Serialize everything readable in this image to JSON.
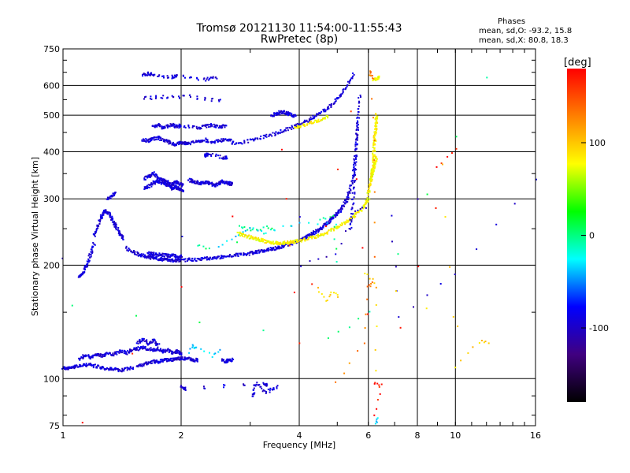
{
  "chart_data": {
    "type": "scatter",
    "title_line1": "Tromsø 20121130 11:54:00-11:55:43",
    "title_line2": "RwPretec (8p)",
    "xlabel": "Frequency [MHz]",
    "ylabel": "Stationary phase Virtual Height [km]",
    "x_scale": "log",
    "y_scale": "log",
    "xlim": [
      1,
      16
    ],
    "ylim": [
      75,
      750
    ],
    "x_ticks": [
      1,
      2,
      4,
      6,
      8,
      10,
      16
    ],
    "x_tick_labels": [
      "1",
      "2",
      "4",
      "6",
      "8",
      "10",
      "16"
    ],
    "y_ticks": [
      75,
      100,
      200,
      300,
      400,
      500,
      600,
      750
    ],
    "y_tick_labels": [
      "75",
      "100",
      "200",
      "300",
      "400",
      "500",
      "600",
      "750"
    ],
    "grid": true,
    "stats": {
      "header": "Phases",
      "line_o": "mean, sd,O: -93.2, 15.8",
      "line_x": "mean, sd,X:  80.8, 18.3"
    },
    "colorbar": {
      "unit_label": "[deg]",
      "range": [
        -180,
        180
      ],
      "ticks": [
        100,
        0,
        -100
      ],
      "tick_labels": [
        "100",
        "0",
        "-100"
      ],
      "colors": [
        "#ff0000",
        "#ff8000",
        "#ffff00",
        "#00ff00",
        "#00ffff",
        "#0000ff",
        "#400080",
        "#000000"
      ]
    },
    "series": [
      {
        "key": "o_mode",
        "phase": -93,
        "segments": [
          {
            "x": [
              1.0,
              1.02,
              1.05,
              1.08,
              1.12,
              1.16,
              1.2,
              1.25,
              1.3,
              1.35,
              1.4,
              1.45,
              1.5
            ],
            "y": [
              107,
              106,
              107,
              108,
              108,
              109,
              108,
              107,
              106,
              106,
              105,
              106,
              107
            ]
          },
          {
            "x": [
              1.55,
              1.6,
              1.65,
              1.7,
              1.75,
              1.8,
              1.85,
              1.9,
              1.95,
              2.0,
              2.05,
              2.1,
              2.15,
              2.2
            ],
            "y": [
              108,
              109,
              110,
              111,
              111,
              112,
              112,
              112,
              113,
              113,
              113,
              113,
              112,
              112
            ]
          },
          {
            "x": [
              1.1,
              1.14,
              1.18,
              1.22,
              1.26,
              1.3,
              1.35,
              1.4,
              1.45,
              1.5,
              1.55,
              1.6,
              1.65,
              1.7,
              1.75,
              1.8,
              1.85,
              1.9,
              1.95,
              2.0
            ],
            "y": [
              113,
              115,
              114,
              116,
              115,
              117,
              116,
              118,
              117,
              119,
              120,
              121,
              120,
              119,
              120,
              118,
              119,
              117,
              118,
              116
            ]
          },
          {
            "x": [
              1.55,
              1.6,
              1.65,
              1.7,
              1.75
            ],
            "y": [
              125,
              127,
              124,
              126,
              123
            ]
          },
          {
            "x": [
              2.55,
              2.6,
              2.65,
              2.7
            ],
            "y": [
              112,
              111,
              112,
              112
            ]
          },
          {
            "x": [
              2.0,
              2.05,
              3.25,
              3.3
            ],
            "y": [
              95,
              94,
              97,
              96
            ]
          },
          {
            "x": [
              1.1,
              1.12,
              1.14,
              1.16,
              1.18,
              1.2
            ],
            "y": [
              185,
              190,
              196,
              205,
              215,
              228
            ]
          },
          {
            "x": [
              1.2,
              1.22,
              1.24,
              1.26,
              1.28,
              1.3,
              1.32,
              1.34,
              1.36,
              1.38,
              1.4,
              1.42
            ],
            "y": [
              240,
              250,
              262,
              272,
              280,
              276,
              270,
              262,
              255,
              248,
              242,
              236
            ]
          },
          {
            "x": [
              1.3,
              1.33,
              1.36
            ],
            "y": [
              300,
              306,
              310
            ]
          },
          {
            "x": [
              1.45,
              1.5,
              1.55,
              1.6,
              1.65,
              1.7,
              1.75,
              1.8,
              1.85,
              1.9,
              1.95,
              2.0,
              2.1,
              2.2,
              2.3,
              2.4,
              2.5,
              2.6,
              2.7,
              2.8,
              2.9,
              3.0,
              3.1,
              3.2,
              3.3,
              3.4,
              3.5,
              3.6,
              3.7,
              3.8,
              3.9,
              4.0,
              4.1,
              4.2,
              4.3,
              4.4,
              4.5,
              4.6,
              4.7,
              4.8,
              4.9,
              5.0,
              5.1,
              5.2,
              5.3,
              5.4,
              5.5,
              5.55,
              5.6,
              5.65,
              5.7
            ],
            "y": [
              222,
              218,
              214,
              212,
              210,
              209,
              208,
              207,
              207,
              206,
              206,
              206,
              207,
              207,
              208,
              209,
              210,
              211,
              212,
              213,
              214,
              215,
              217,
              218,
              219,
              221,
              222,
              224,
              226,
              228,
              230,
              232,
              235,
              238,
              241,
              245,
              249,
              253,
              258,
              263,
              268,
              274,
              281,
              290,
              300,
              318,
              345,
              380,
              430,
              490,
              560
            ]
          },
          {
            "x": [
              1.65,
              1.7,
              1.75,
              1.8,
              1.85,
              1.9,
              1.95,
              2.0
            ],
            "y": [
              215,
              214,
              213,
              213,
              212,
              212,
              211,
              211
            ]
          },
          {
            "x": [
              1.62,
              1.66,
              1.7,
              1.74,
              1.78,
              1.82,
              1.86,
              1.9,
              1.94,
              1.98,
              2.02
            ],
            "y": [
              320,
              325,
              330,
              335,
              332,
              328,
              325,
              320,
              322,
              318,
              316
            ]
          },
          {
            "x": [
              1.62,
              1.66,
              1.7,
              1.74,
              1.78,
              1.82,
              1.86,
              1.9,
              1.94,
              1.98,
              2.02
            ],
            "y": [
              340,
              345,
              350,
              342,
              338,
              335,
              330,
              328,
              333,
              330,
              326
            ]
          },
          {
            "x": [
              2.1,
              2.15,
              2.2,
              2.25,
              2.3,
              2.35,
              2.4,
              2.45,
              2.5,
              2.55,
              2.6,
              2.65,
              2.7
            ],
            "y": [
              336,
              334,
              332,
              330,
              332,
              330,
              328,
              326,
              330,
              334,
              332,
              330,
              328
            ]
          },
          {
            "x": [
              1.6,
              1.65,
              1.7,
              1.75,
              1.8,
              1.85,
              1.9,
              1.95,
              2.0,
              2.05,
              2.1,
              2.2,
              2.3,
              2.4,
              2.5,
              2.6,
              2.7
            ],
            "y": [
              430,
              428,
              432,
              436,
              428,
              425,
              420,
              418,
              424,
              422,
              420,
              426,
              430,
              424,
              428,
              432,
              426
            ]
          },
          {
            "x": [
              1.7,
              1.75,
              1.8,
              1.85,
              1.9,
              1.95,
              2.0,
              2.2,
              2.3,
              2.4,
              2.5,
              2.6
            ],
            "y": [
              465,
              470,
              462,
              468,
              472,
              466,
              470,
              462,
              468,
              470,
              465,
              468
            ]
          },
          {
            "x": [
              2.7,
              2.9,
              3.1,
              3.3,
              3.5,
              3.7,
              3.9,
              4.1,
              4.3,
              4.5,
              4.7,
              4.9,
              5.1,
              5.3,
              5.5
            ],
            "y": [
              420,
              425,
              432,
              440,
              448,
              458,
              468,
              478,
              490,
              505,
              520,
              540,
              565,
              600,
              640
            ]
          },
          {
            "x": [
              3.4,
              3.5,
              3.6,
              3.7,
              3.8,
              3.9
            ],
            "y": [
              500,
              505,
              510,
              508,
              502,
              498
            ]
          },
          {
            "x": [
              1.6,
              1.65,
              1.7,
              1.9,
              1.95,
              2.3,
              2.45
            ],
            "y": [
              640,
              645,
              638,
              632,
              636,
              622,
              628
            ]
          },
          {
            "x": [
              1.62,
              1.85,
              2.1,
              2.5
            ],
            "y": [
              555,
              560,
              560,
              545
            ]
          },
          {
            "x": [
              5.4,
              5.45,
              5.5,
              5.55,
              5.6,
              5.62
            ],
            "y": [
              250,
              275,
              310,
              360,
              420,
              480
            ]
          },
          {
            "x": [
              2.3,
              2.35,
              2.55,
              2.62
            ],
            "y": [
              390,
              395,
              385,
              388
            ]
          },
          {
            "x": [
              3.05,
              3.1,
              3.3,
              3.5
            ],
            "y": [
              90,
              97,
              92,
              95
            ]
          }
        ]
      },
      {
        "key": "x_mode",
        "phase": 81,
        "segments": [
          {
            "x": [
              2.8,
              2.9,
              3.0,
              3.1,
              3.2,
              3.3,
              3.4,
              3.5,
              3.6,
              3.7,
              3.8,
              3.9,
              4.0,
              4.2,
              4.4,
              4.6,
              4.8,
              5.0,
              5.2,
              5.4,
              5.6,
              5.8,
              5.9,
              6.0
            ],
            "y": [
              243,
              240,
              237,
              235,
              233,
              231,
              230,
              229,
              229,
              229,
              230,
              231,
              232,
              235,
              238,
              242,
              247,
              252,
              258,
              265,
              273,
              283,
              290,
              300
            ]
          },
          {
            "x": [
              6.0,
              6.05,
              6.1,
              6.15,
              6.18,
              6.2,
              6.22,
              6.24,
              6.26,
              6.28,
              6.3
            ],
            "y": [
              310,
              325,
              340,
              360,
              380,
              400,
              420,
              440,
              460,
              480,
              500
            ]
          },
          {
            "x": [
              6.1,
              6.15,
              6.2,
              6.25,
              6.3
            ],
            "y": [
              340,
              350,
              365,
              375,
              385
            ]
          },
          {
            "x": [
              3.9,
              4.1,
              4.3,
              4.5,
              4.7
            ],
            "y": [
              465,
              470,
              478,
              485,
              495
            ]
          },
          {
            "x": [
              6.2,
              6.3,
              6.4
            ],
            "y": [
              620,
              625,
              630
            ]
          }
        ]
      },
      {
        "key": "scattered",
        "phase": 0,
        "segments": [
          {
            "x": [
              2.8,
              2.95,
              3.1,
              3.3,
              3.45
            ],
            "y": [
              255,
              250,
              246,
              252,
              248
            ]
          },
          {
            "x": [
              2.2,
              2.35,
              4.5,
              4.9,
              5.0
            ],
            "y": [
              225,
              220,
              265,
              270,
              205
            ]
          },
          {
            "x": [
              1.05,
              4.75,
              6.05,
              12.0
            ],
            "y": [
              155,
              127,
              150,
              630
            ]
          }
        ]
      },
      {
        "key": "cyan_points",
        "phase": -35,
        "segments": [
          {
            "x": [
              2.5,
              2.75,
              3.0,
              3.3,
              4.0,
              5.0
            ],
            "y": [
              225,
              240,
              250,
              245,
              260,
              255
            ]
          },
          {
            "x": [
              2.1,
              2.15,
              2.2,
              2.4,
              2.5
            ],
            "y": [
              118,
              122,
              120,
              115,
              119
            ]
          },
          {
            "x": [
              6.3,
              6.35
            ],
            "y": [
              76,
              78
            ]
          }
        ]
      },
      {
        "key": "red_points",
        "phase": 170,
        "segments": [
          {
            "x": [
              1.12,
              3.6,
              4.0,
              5.4,
              6.2,
              6.4
            ],
            "y": [
              77,
              405,
              125,
              510,
              98,
              95
            ]
          },
          {
            "x": [
              6.25,
              6.5,
              10.0,
              9.0
            ],
            "y": [
              80,
              96,
              405,
              365
            ]
          }
        ]
      },
      {
        "key": "orange_points",
        "phase": 130,
        "segments": [
          {
            "x": [
              6.05,
              6.1,
              6.15,
              6.2,
              6.25
            ],
            "y": [
              650,
              640,
              630,
              380,
              175
            ]
          },
          {
            "x": [
              4.95,
              5.9,
              6.0,
              6.15
            ],
            "y": [
              97,
              125,
              175,
              180
            ]
          }
        ]
      },
      {
        "key": "deep_blue",
        "phase": -100,
        "segments": [
          {
            "x": [
              6.85,
              7.2,
              10.0,
              16.0,
              1.0
            ],
            "y": [
              270,
              145,
              190,
              340,
              210
            ]
          },
          {
            "x": [
              4.05,
              4.95,
              5.55,
              5.9
            ],
            "y": [
              200,
              215,
              280,
              285
            ]
          }
        ]
      },
      {
        "key": "yellow_points",
        "phase": 95,
        "segments": [
          {
            "x": [
              9.3,
              10.0,
              11.5,
              12.1,
              5.9,
              6.25,
              6.3
            ],
            "y": [
              367,
              108,
              125,
              125,
              190,
              180,
              105
            ]
          },
          {
            "x": [
              4.45,
              4.7,
              4.85,
              5.05
            ],
            "y": [
              175,
              160,
              170,
              165
            ]
          }
        ]
      }
    ]
  }
}
